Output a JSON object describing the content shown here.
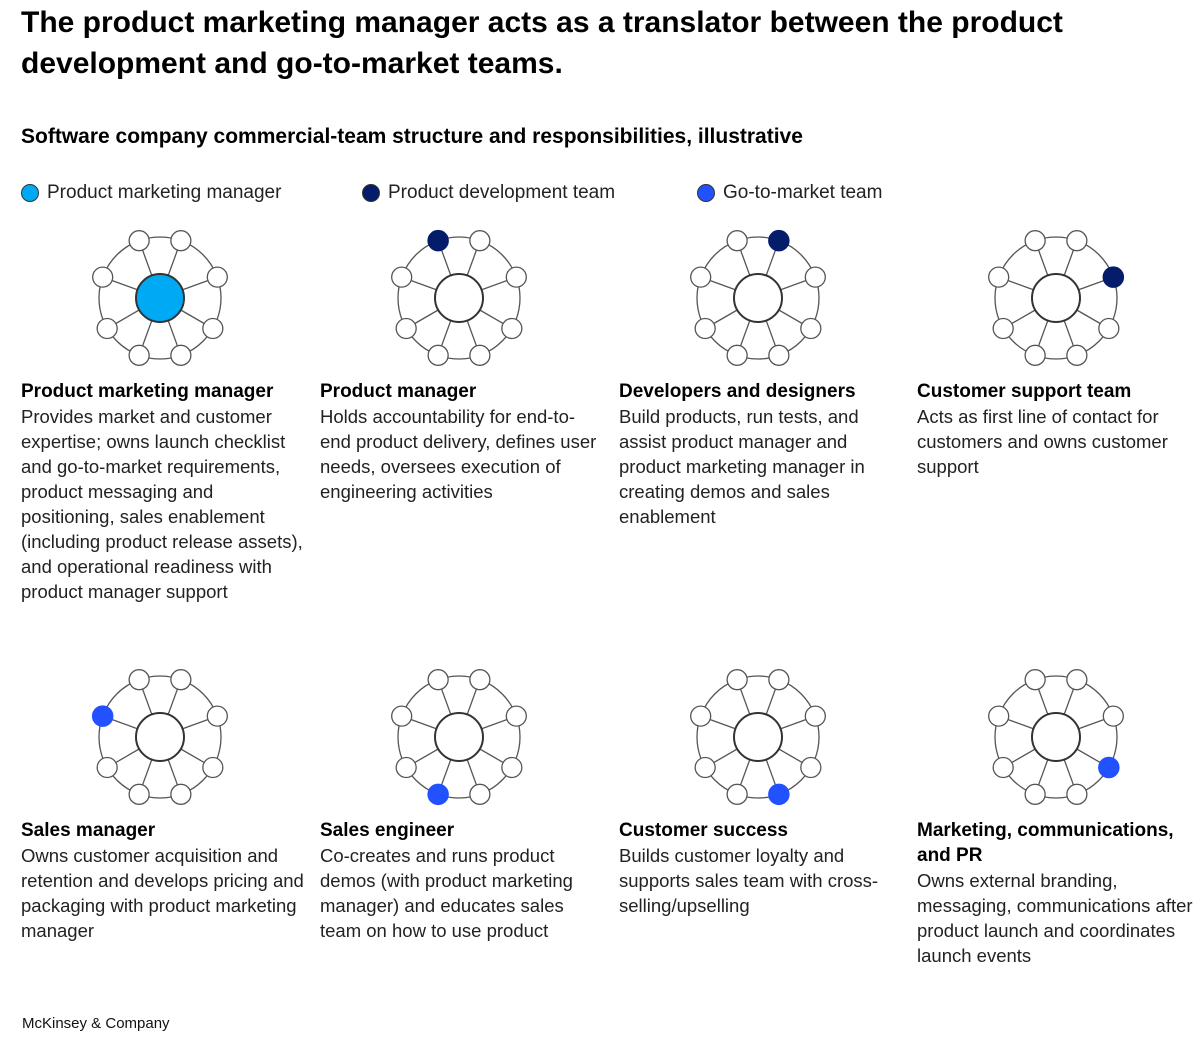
{
  "header": {
    "title": "The product marketing manager acts as a translator between the product development and go-to-market teams.",
    "subtitle": "Software company commercial-team structure and responsibilities, illustrative"
  },
  "legend": [
    {
      "label": "Product marketing manager",
      "color": "#00A9F4"
    },
    {
      "label": "Product development team",
      "color": "#051C6B"
    },
    {
      "label": "Go-to-market team",
      "color": "#2251FF"
    }
  ],
  "colors": {
    "outline": "#333333",
    "line": "#555555",
    "empty": "#ffffff"
  },
  "roles": [
    {
      "title": "Product marketing manager",
      "description": "Provides market and customer expertise; owns launch checklist and go-to-market requirements, product messaging and positioning, sales enablement (including product release assets), and operational readiness with product manager support",
      "highlight": "center",
      "highlight_color": "#00A9F4"
    },
    {
      "title": "Product manager",
      "description": "Holds accountability for end-to-end product delivery, defines user needs, oversees execution of engineering activities",
      "highlight": 0,
      "highlight_color": "#051C6B"
    },
    {
      "title": "Developers and designers",
      "description": "Build products, run tests, and assist product manager and product marketing manager in creating demos and sales enablement",
      "highlight": 1,
      "highlight_color": "#051C6B"
    },
    {
      "title": "Customer support team",
      "description": "Acts as first line of contact for customers and owns customer support",
      "highlight": 2,
      "highlight_color": "#051C6B"
    },
    {
      "title": "Sales manager",
      "description": "Owns customer acquisition and retention and develops pricing and packaging with product marketing manager",
      "highlight": 7,
      "highlight_color": "#2251FF"
    },
    {
      "title": "Sales engineer",
      "description": "Co-creates and runs product demos (with product marketing manager) and educates sales team on how to use product",
      "highlight": 5,
      "highlight_color": "#2251FF"
    },
    {
      "title": "Customer success",
      "description": "Builds customer loyalty and supports sales team with cross-selling/upselling",
      "highlight": 4,
      "highlight_color": "#2251FF"
    },
    {
      "title": "Marketing, communications, and PR",
      "description": "Owns external branding, messaging, communications after product launch and coordinates launch events",
      "highlight": 3,
      "highlight_color": "#2251FF"
    }
  ],
  "footer": {
    "source": "McKinsey & Company"
  }
}
